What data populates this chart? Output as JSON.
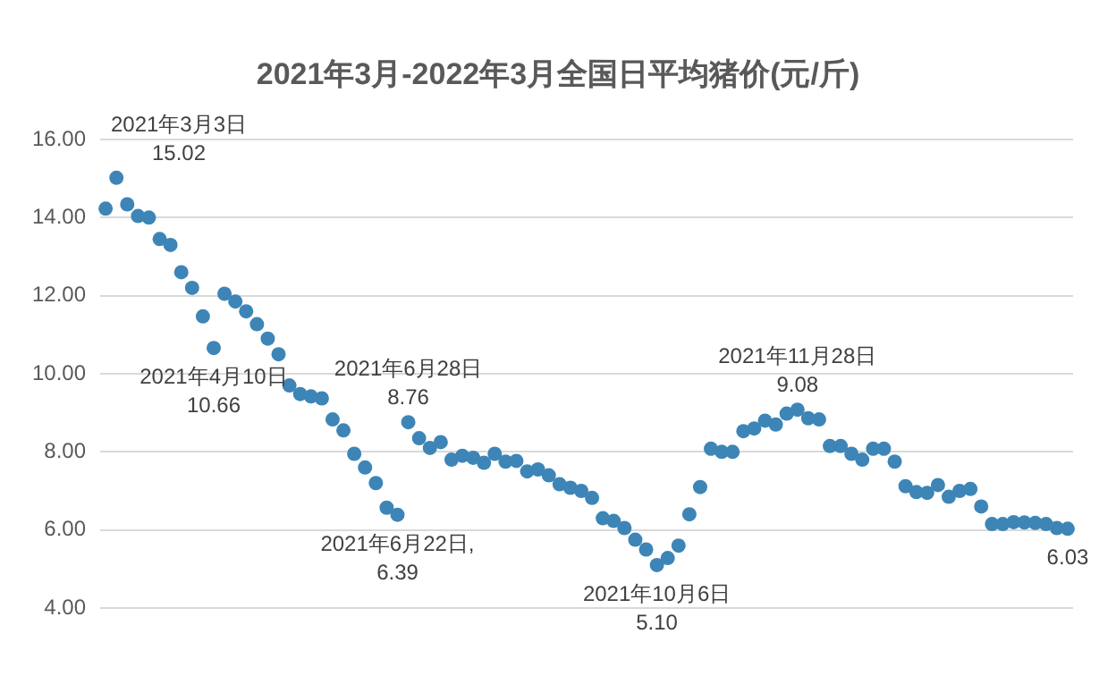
{
  "chart_data": {
    "type": "scatter",
    "title": "2021年3月-2022年3月全国日平均猪价(元/斤)",
    "categories": [
      null,
      null,
      null,
      null,
      null,
      null,
      null,
      null,
      null,
      null,
      null,
      null,
      null,
      null,
      null,
      null,
      null,
      null,
      null,
      null,
      null,
      null,
      null,
      null,
      null,
      null,
      null,
      null,
      null,
      null,
      null,
      null,
      null,
      null,
      null,
      null,
      null,
      null,
      null,
      null,
      null,
      null,
      null,
      null,
      null,
      null,
      null,
      null,
      null,
      null,
      null,
      null,
      null,
      null,
      null,
      null,
      null,
      null,
      null,
      null,
      null,
      null,
      null,
      null,
      null,
      null,
      null,
      null,
      null,
      null,
      null,
      null,
      null,
      null,
      null,
      null,
      null,
      null,
      null,
      null,
      null,
      null,
      null,
      null,
      null,
      null,
      null,
      null,
      null,
      null
    ],
    "series": [
      {
        "color": "#3d85b6",
        "values": [
          14.23,
          15.02,
          14.34,
          14.04,
          14.0,
          13.45,
          13.3,
          12.6,
          12.2,
          11.47,
          10.66,
          12.05,
          11.85,
          11.6,
          11.27,
          10.9,
          10.5,
          9.7,
          9.48,
          9.42,
          9.37,
          8.83,
          8.55,
          7.95,
          7.6,
          7.2,
          6.57,
          6.39,
          8.76,
          8.35,
          8.1,
          8.25,
          7.8,
          7.9,
          7.85,
          7.72,
          7.95,
          7.75,
          7.77,
          7.5,
          7.55,
          7.4,
          7.17,
          7.08,
          7.0,
          6.82,
          6.3,
          6.23,
          6.05,
          5.75,
          5.5,
          5.1,
          5.28,
          5.6,
          6.4,
          7.1,
          8.08,
          8.0,
          8.0,
          8.53,
          8.6,
          8.8,
          8.7,
          8.98,
          9.08,
          8.86,
          8.83,
          8.15,
          8.15,
          7.95,
          7.8,
          8.08,
          8.08,
          7.75,
          7.12,
          6.97,
          6.95,
          7.15,
          6.85,
          7.0,
          7.05,
          6.6,
          6.15,
          6.15,
          6.2,
          6.19,
          6.18,
          6.15,
          6.05,
          6.03
        ],
        "value_labels": [
          null,
          "2021年3月3日\n15.02",
          null,
          null,
          null,
          null,
          null,
          null,
          null,
          null,
          "2021年4月10日\n10.66",
          null,
          null,
          null,
          null,
          null,
          null,
          null,
          null,
          null,
          null,
          null,
          null,
          null,
          null,
          null,
          null,
          "2021年6月22日,\n6.39",
          "2021年6月28日\n8.76",
          null,
          null,
          null,
          null,
          null,
          null,
          null,
          null,
          null,
          null,
          null,
          null,
          null,
          null,
          null,
          null,
          null,
          null,
          null,
          null,
          null,
          null,
          "2021年10月6日\n5.10",
          null,
          null,
          null,
          null,
          null,
          null,
          null,
          null,
          null,
          null,
          null,
          null,
          "2021年11月28日\n9.08",
          null,
          null,
          null,
          null,
          null,
          null,
          null,
          null,
          null,
          null,
          null,
          null,
          null,
          null,
          null,
          null,
          null,
          null,
          null,
          null,
          null,
          null,
          null,
          null,
          "6.03"
        ]
      }
    ],
    "ylim": [
      4,
      16
    ],
    "yticks": [
      {
        "value": 4,
        "label": "4.00"
      },
      {
        "value": 6,
        "label": "6.00"
      },
      {
        "value": 8,
        "label": "8.00"
      },
      {
        "value": 10,
        "label": "10.00"
      },
      {
        "value": 12,
        "label": "12.00"
      },
      {
        "value": 14,
        "label": "14.00"
      },
      {
        "value": 16,
        "label": "16.00"
      }
    ],
    "grid": "y",
    "marker": "circle",
    "tick_labels": "y"
  }
}
